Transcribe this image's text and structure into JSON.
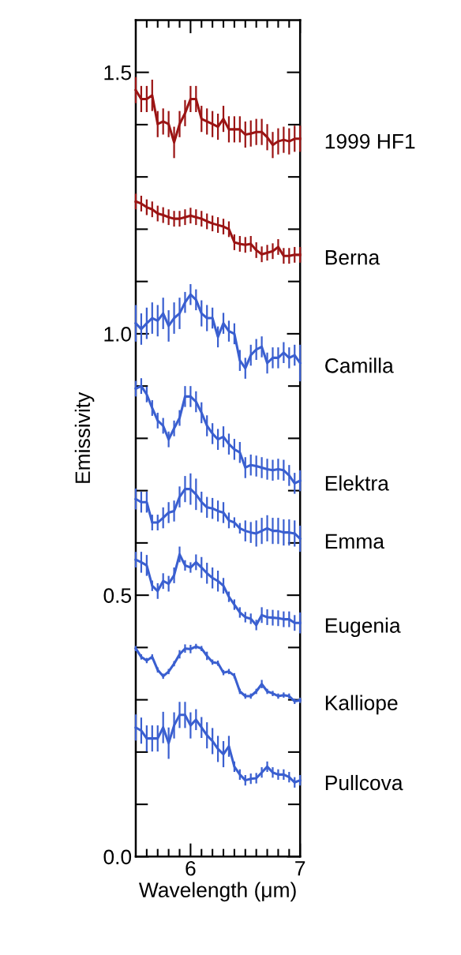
{
  "chart_data": {
    "type": "line",
    "xlabel": "Wavelength (μm)",
    "ylabel": "Emissivity",
    "x": [
      5.5,
      5.55,
      5.6,
      5.65,
      5.7,
      5.75,
      5.8,
      5.85,
      5.9,
      5.95,
      6.0,
      6.05,
      6.1,
      6.15,
      6.2,
      6.25,
      6.3,
      6.35,
      6.4,
      6.45,
      6.5,
      6.55,
      6.6,
      6.65,
      6.7,
      6.75,
      6.8,
      6.85,
      6.9,
      6.95,
      7.0
    ],
    "xlim": [
      5.5,
      7.0
    ],
    "xticks": [
      {
        "value": 5.6,
        "label": null
      },
      {
        "value": 5.7,
        "label": null
      },
      {
        "value": 5.8,
        "label": null
      },
      {
        "value": 5.9,
        "label": null
      },
      6,
      {
        "value": 6.1,
        "label": null
      },
      {
        "value": 6.2,
        "label": null
      },
      {
        "value": 6.3,
        "label": null
      },
      {
        "value": 6.4,
        "label": null
      },
      {
        "value": 6.5,
        "label": null
      },
      {
        "value": 6.6,
        "label": null
      },
      {
        "value": 6.7,
        "label": null
      },
      {
        "value": 6.8,
        "label": null
      },
      {
        "value": 6.9,
        "label": null
      },
      7
    ],
    "ylim": [
      0,
      1.6
    ],
    "yticks": [
      {
        "value": 0,
        "label": "0.0"
      },
      {
        "value": 0.1,
        "label": null
      },
      {
        "value": 0.2,
        "label": null
      },
      {
        "value": 0.3,
        "label": null
      },
      {
        "value": 0.4,
        "label": null
      },
      0.5,
      {
        "value": 0.6,
        "label": null
      },
      {
        "value": 0.7,
        "label": null
      },
      {
        "value": 0.8,
        "label": null
      },
      {
        "value": 0.9,
        "label": null
      },
      {
        "value": 1.0,
        "label": "1.0"
      },
      {
        "value": 1.1,
        "label": null
      },
      {
        "value": 1.2,
        "label": null
      },
      {
        "value": 1.3,
        "label": null
      },
      {
        "value": 1.4,
        "label": null
      },
      1.5
    ],
    "grid": false,
    "legend": false,
    "marker": "none",
    "line_style": "solid",
    "series": [
      {
        "name": "1999 HF1",
        "color": "#9b1414",
        "values": [
          1.466,
          1.449,
          1.449,
          1.456,
          1.401,
          1.406,
          1.401,
          1.366,
          1.401,
          1.422,
          1.449,
          1.449,
          1.411,
          1.406,
          1.401,
          1.396,
          1.411,
          1.391,
          1.391,
          1.391,
          1.381,
          1.383,
          1.386,
          1.386,
          1.376,
          1.361,
          1.368,
          1.371,
          1.368,
          1.373,
          1.373
        ],
        "errors": [
          0.025,
          0.025,
          0.025,
          0.03,
          0.025,
          0.025,
          0.025,
          0.03,
          0.025,
          0.025,
          0.025,
          0.025,
          0.025,
          0.025,
          0.025,
          0.025,
          0.025,
          0.025,
          0.025,
          0.025,
          0.025,
          0.025,
          0.025,
          0.025,
          0.025,
          0.025,
          0.025,
          0.025,
          0.025,
          0.025,
          0.025
        ]
      },
      {
        "name": "Berna",
        "color": "#9b1414",
        "values": [
          1.253,
          1.249,
          1.242,
          1.238,
          1.23,
          1.227,
          1.223,
          1.22,
          1.22,
          1.223,
          1.226,
          1.223,
          1.22,
          1.215,
          1.211,
          1.208,
          1.205,
          1.2,
          1.175,
          1.172,
          1.17,
          1.172,
          1.16,
          1.152,
          1.155,
          1.158,
          1.166,
          1.149,
          1.149,
          1.151,
          1.151
        ],
        "errors": [
          0.015,
          0.015,
          0.015,
          0.015,
          0.015,
          0.015,
          0.015,
          0.015,
          0.015,
          0.015,
          0.015,
          0.015,
          0.015,
          0.015,
          0.015,
          0.015,
          0.015,
          0.015,
          0.015,
          0.015,
          0.015,
          0.015,
          0.015,
          0.015,
          0.015,
          0.015,
          0.015,
          0.015,
          0.015,
          0.015,
          0.015
        ]
      },
      {
        "name": "Camilla",
        "color": "#3a5fd0",
        "values": [
          1.02,
          1.009,
          1.02,
          1.03,
          1.025,
          1.039,
          1.015,
          1.03,
          1.039,
          1.06,
          1.075,
          1.065,
          1.039,
          1.03,
          1.03,
          0.994,
          1.02,
          1.005,
          1.0,
          0.949,
          0.934,
          0.959,
          0.97,
          0.975,
          0.944,
          0.954,
          0.954,
          0.964,
          0.954,
          0.959,
          0.944
        ],
        "errors": [
          0.035,
          0.03,
          0.03,
          0.03,
          0.03,
          0.03,
          0.03,
          0.03,
          0.03,
          0.02,
          0.02,
          0.02,
          0.025,
          0.025,
          0.02,
          0.02,
          0.02,
          0.02,
          0.02,
          0.02,
          0.02,
          0.02,
          0.02,
          0.02,
          0.02,
          0.02,
          0.02,
          0.02,
          0.02,
          0.02,
          0.035
        ]
      },
      {
        "name": "Elektra",
        "color": "#3a5fd0",
        "values": [
          0.895,
          0.9,
          0.884,
          0.858,
          0.834,
          0.824,
          0.798,
          0.819,
          0.839,
          0.88,
          0.88,
          0.87,
          0.849,
          0.824,
          0.809,
          0.798,
          0.803,
          0.789,
          0.779,
          0.773,
          0.744,
          0.749,
          0.747,
          0.744,
          0.741,
          0.739,
          0.741,
          0.739,
          0.729,
          0.714,
          0.719
        ],
        "errors": [
          0.015,
          0.015,
          0.015,
          0.015,
          0.015,
          0.015,
          0.015,
          0.015,
          0.015,
          0.02,
          0.02,
          0.02,
          0.02,
          0.02,
          0.02,
          0.02,
          0.02,
          0.02,
          0.02,
          0.02,
          0.02,
          0.02,
          0.02,
          0.02,
          0.02,
          0.02,
          0.02,
          0.02,
          0.02,
          0.02,
          0.02
        ]
      },
      {
        "name": "Emma",
        "color": "#3a5fd0",
        "values": [
          0.684,
          0.678,
          0.678,
          0.639,
          0.639,
          0.648,
          0.658,
          0.661,
          0.688,
          0.703,
          0.703,
          0.693,
          0.678,
          0.668,
          0.666,
          0.661,
          0.658,
          0.643,
          0.639,
          0.628,
          0.623,
          0.62,
          0.618,
          0.623,
          0.628,
          0.623,
          0.623,
          0.62,
          0.62,
          0.618,
          0.608
        ],
        "errors": [
          0.02,
          0.02,
          0.02,
          0.015,
          0.015,
          0.02,
          0.02,
          0.02,
          0.02,
          0.025,
          0.03,
          0.03,
          0.02,
          0.02,
          0.02,
          0.02,
          0.02,
          0.015,
          0.01,
          0.01,
          0.02,
          0.02,
          0.025,
          0.025,
          0.025,
          0.025,
          0.025,
          0.025,
          0.025,
          0.025,
          0.025
        ]
      },
      {
        "name": "Eugenia",
        "color": "#3a5fd0",
        "values": [
          0.568,
          0.563,
          0.557,
          0.518,
          0.508,
          0.527,
          0.522,
          0.538,
          0.578,
          0.557,
          0.553,
          0.563,
          0.553,
          0.542,
          0.533,
          0.527,
          0.518,
          0.497,
          0.482,
          0.467,
          0.458,
          0.455,
          0.443,
          0.462,
          0.458,
          0.457,
          0.456,
          0.454,
          0.454,
          0.447,
          0.447
        ],
        "errors": [
          0.015,
          0.02,
          0.02,
          0.01,
          0.015,
          0.015,
          0.015,
          0.015,
          0.015,
          0.01,
          0.01,
          0.015,
          0.02,
          0.02,
          0.02,
          0.02,
          0.015,
          0.01,
          0.01,
          0.01,
          0.01,
          0.01,
          0.01,
          0.015,
          0.015,
          0.015,
          0.015,
          0.015,
          0.015,
          0.015,
          0.02
        ]
      },
      {
        "name": "Kalliope",
        "color": "#3a5fd0",
        "values": [
          0.398,
          0.382,
          0.375,
          0.382,
          0.357,
          0.345,
          0.354,
          0.369,
          0.387,
          0.398,
          0.397,
          0.402,
          0.398,
          0.384,
          0.372,
          0.37,
          0.352,
          0.354,
          0.346,
          0.316,
          0.307,
          0.307,
          0.316,
          0.33,
          0.316,
          0.312,
          0.307,
          0.309,
          0.307,
          0.297,
          0.299
        ],
        "errors": [
          0.005,
          0.005,
          0.005,
          0.005,
          0.005,
          0.005,
          0.005,
          0.005,
          0.008,
          0.008,
          0.008,
          0.005,
          0.005,
          0.008,
          0.005,
          0.005,
          0.005,
          0.005,
          0.005,
          0.005,
          0.005,
          0.005,
          0.005,
          0.008,
          0.005,
          0.005,
          0.005,
          0.005,
          0.005,
          0.005,
          0.005
        ]
      },
      {
        "name": "Pullcova",
        "color": "#3a5fd0",
        "values": [
          0.247,
          0.241,
          0.226,
          0.226,
          0.226,
          0.247,
          0.217,
          0.251,
          0.271,
          0.271,
          0.251,
          0.262,
          0.247,
          0.232,
          0.221,
          0.206,
          0.196,
          0.211,
          0.172,
          0.157,
          0.146,
          0.149,
          0.15,
          0.161,
          0.172,
          0.161,
          0.157,
          0.157,
          0.152,
          0.142,
          0.146
        ],
        "errors": [
          0.025,
          0.025,
          0.025,
          0.025,
          0.025,
          0.03,
          0.03,
          0.025,
          0.025,
          0.025,
          0.025,
          0.02,
          0.02,
          0.025,
          0.025,
          0.025,
          0.025,
          0.02,
          0.01,
          0.01,
          0.01,
          0.01,
          0.01,
          0.01,
          0.01,
          0.01,
          0.01,
          0.01,
          0.01,
          0.01,
          0.01
        ]
      }
    ]
  }
}
